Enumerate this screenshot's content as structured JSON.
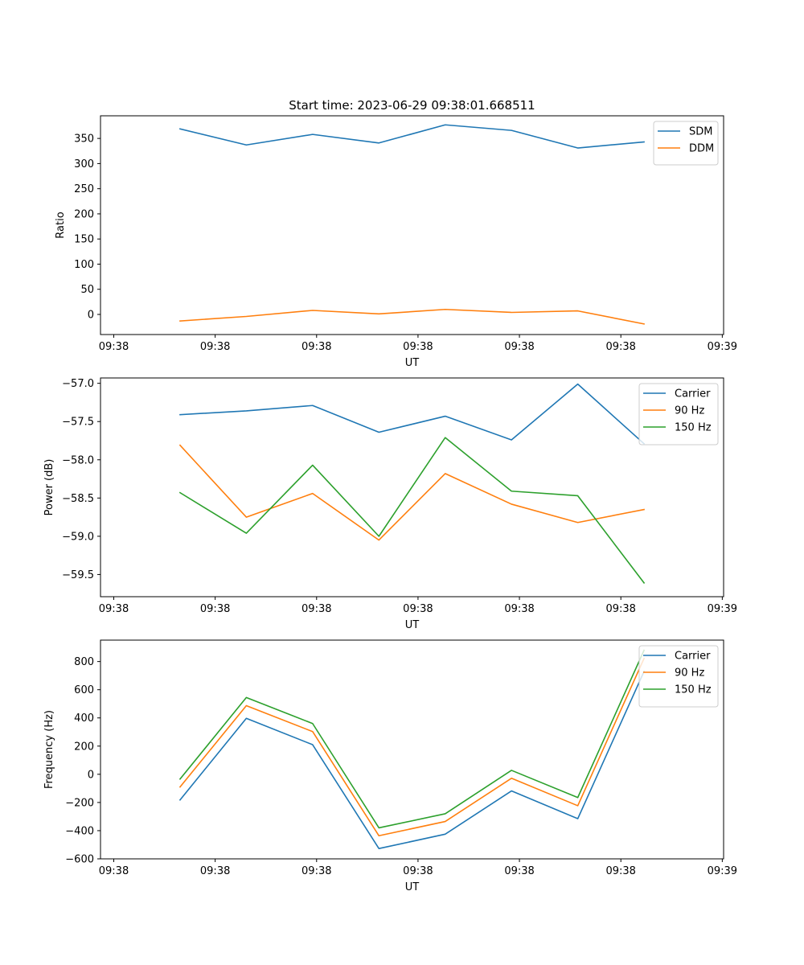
{
  "figure_title": "Start time: 2023-06-29 09:38:01.668511",
  "chart_data": [
    {
      "type": "line",
      "title": "Start time: 2023-06-29 09:38:01.668511",
      "xlabel": "UT",
      "ylabel": "Ratio",
      "x": [
        1,
        2,
        3,
        4,
        5,
        6,
        7,
        8
      ],
      "xlim": [
        -0.2,
        9.2
      ],
      "xticks": [
        0,
        1.53,
        3.06,
        4.59,
        6.12,
        7.65,
        9.18
      ],
      "xtick_labels": [
        "09:38",
        "09:38",
        "09:38",
        "09:38",
        "09:38",
        "09:38",
        "09:39"
      ],
      "ylim": [
        -40,
        395
      ],
      "yticks": [
        0,
        50,
        100,
        150,
        200,
        250,
        300,
        350
      ],
      "ytick_labels": [
        "0",
        "50",
        "100",
        "150",
        "200",
        "250",
        "300",
        "350"
      ],
      "legend_position": "upper right",
      "grid": false,
      "series": [
        {
          "name": "SDM",
          "color": "#1f77b4",
          "values": [
            369,
            337,
            358,
            341,
            377,
            366,
            331,
            343
          ]
        },
        {
          "name": "DDM",
          "color": "#ff7f0e",
          "values": [
            -13,
            -4,
            8,
            1,
            10,
            4,
            7,
            -19
          ]
        }
      ]
    },
    {
      "type": "line",
      "xlabel": "UT",
      "ylabel": "Power (dB)",
      "x": [
        1,
        2,
        3,
        4,
        5,
        6,
        7,
        8
      ],
      "xlim": [
        -0.2,
        9.2
      ],
      "xticks": [
        0,
        1.53,
        3.06,
        4.59,
        6.12,
        7.65,
        9.18
      ],
      "xtick_labels": [
        "09:38",
        "09:38",
        "09:38",
        "09:38",
        "09:38",
        "09:38",
        "09:39"
      ],
      "ylim": [
        -59.79,
        -56.93
      ],
      "yticks": [
        -59.5,
        -59.0,
        -58.5,
        -58.0,
        -57.5,
        -57.0
      ],
      "ytick_labels": [
        "−59.5",
        "−59.0",
        "−58.5",
        "−58.0",
        "−57.5",
        "−57.0"
      ],
      "legend_position": "upper right",
      "grid": false,
      "series": [
        {
          "name": "Carrier",
          "color": "#1f77b4",
          "values": [
            -57.41,
            -57.36,
            -57.29,
            -57.64,
            -57.43,
            -57.74,
            -57.01,
            -57.79
          ]
        },
        {
          "name": "90 Hz",
          "color": "#ff7f0e",
          "values": [
            -57.81,
            -58.75,
            -58.44,
            -59.05,
            -58.18,
            -58.58,
            -58.82,
            -58.65
          ]
        },
        {
          "name": "150 Hz",
          "color": "#2ca02c",
          "values": [
            -58.43,
            -58.96,
            -58.07,
            -59.0,
            -57.71,
            -58.41,
            -58.47,
            -59.61
          ]
        }
      ]
    },
    {
      "type": "line",
      "xlabel": "UT",
      "ylabel": "Frequency (Hz)",
      "x": [
        1,
        2,
        3,
        4,
        5,
        6,
        7,
        8
      ],
      "xlim": [
        -0.2,
        9.2
      ],
      "xticks": [
        0,
        1.53,
        3.06,
        4.59,
        6.12,
        7.65,
        9.18
      ],
      "xtick_labels": [
        "09:38",
        "09:38",
        "09:38",
        "09:38",
        "09:38",
        "09:38",
        "09:39"
      ],
      "ylim": [
        -600,
        952
      ],
      "yticks": [
        -600,
        -400,
        -200,
        0,
        200,
        400,
        600,
        800
      ],
      "ytick_labels": [
        "−600",
        "−400",
        "−200",
        "0",
        "200",
        "400",
        "600",
        "800"
      ],
      "legend_position": "upper right",
      "grid": false,
      "series": [
        {
          "name": "Carrier",
          "color": "#1f77b4",
          "values": [
            -182,
            397,
            210,
            -527,
            -425,
            -118,
            -315,
            730
          ]
        },
        {
          "name": "90 Hz",
          "color": "#ff7f0e",
          "values": [
            -90,
            487,
            303,
            -436,
            -335,
            -28,
            -223,
            822
          ]
        },
        {
          "name": "150 Hz",
          "color": "#2ca02c",
          "values": [
            -34,
            545,
            360,
            -380,
            -280,
            28,
            -165,
            880
          ]
        }
      ]
    }
  ]
}
